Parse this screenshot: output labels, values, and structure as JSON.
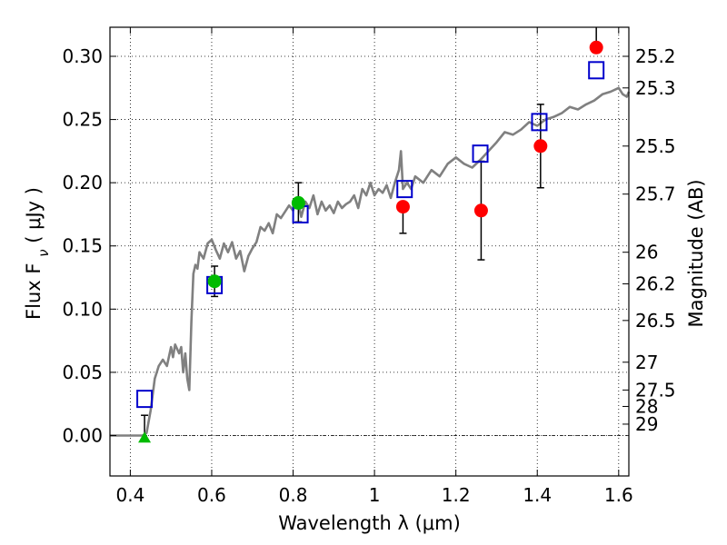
{
  "chart_data": {
    "type": "scatter",
    "xlabel": "Wavelength  λ (μm)",
    "ylabel": "Flux  F",
    "ylabel_sub": "ν",
    "ylabel_unit": " (  μJy )",
    "ylabel_right": "Magnitude (AB)",
    "xlim": [
      0.35,
      1.625
    ],
    "ylim": [
      -0.032,
      0.323
    ],
    "x_ticks": [
      0.4,
      0.6,
      0.8,
      1.0,
      1.2,
      1.4,
      1.6
    ],
    "x_tick_labels": [
      "0.4",
      "0.6",
      "0.8",
      "1",
      "1.2",
      "1.4",
      "1.6"
    ],
    "y_ticks": [
      0.0,
      0.05,
      0.1,
      0.15,
      0.2,
      0.25,
      0.3
    ],
    "y_tick_labels": [
      "0.00",
      "0.05",
      "0.10",
      "0.15",
      "0.20",
      "0.25",
      "0.30"
    ],
    "right_ticks": [
      {
        "label": "25.2",
        "flux": 0.3
      },
      {
        "label": "25.3",
        "flux": 0.275
      },
      {
        "label": "25.5",
        "flux": 0.229
      },
      {
        "label": "25.7",
        "flux": 0.191
      },
      {
        "label": "26",
        "flux": 0.145
      },
      {
        "label": "26.2",
        "flux": 0.12
      },
      {
        "label": "26.5",
        "flux": 0.091
      },
      {
        "label": "27",
        "flux": 0.058
      },
      {
        "label": "27.5",
        "flux": 0.036
      },
      {
        "label": "28",
        "flux": 0.023
      },
      {
        "label": "29",
        "flux": 0.009
      }
    ],
    "grid": true,
    "colors": {
      "model": "#808080",
      "model_points": "#0000cc",
      "red_points": "#ff0000",
      "green_points": "#00bb00",
      "errorbar": "#000000"
    },
    "series": [
      {
        "name": "model spectrum",
        "style": "line",
        "x": [
          0.35,
          0.38,
          0.4,
          0.42,
          0.425,
          0.43,
          0.44,
          0.45,
          0.46,
          0.47,
          0.48,
          0.49,
          0.5,
          0.505,
          0.51,
          0.52,
          0.525,
          0.53,
          0.535,
          0.54,
          0.545,
          0.55,
          0.555,
          0.56,
          0.565,
          0.57,
          0.58,
          0.59,
          0.6,
          0.61,
          0.62,
          0.63,
          0.64,
          0.65,
          0.66,
          0.67,
          0.68,
          0.69,
          0.7,
          0.71,
          0.72,
          0.73,
          0.74,
          0.75,
          0.76,
          0.77,
          0.78,
          0.79,
          0.8,
          0.81,
          0.82,
          0.83,
          0.84,
          0.85,
          0.86,
          0.87,
          0.88,
          0.89,
          0.9,
          0.91,
          0.92,
          0.93,
          0.94,
          0.95,
          0.96,
          0.97,
          0.98,
          0.99,
          1.0,
          1.01,
          1.02,
          1.03,
          1.04,
          1.05,
          1.06,
          1.065,
          1.07,
          1.08,
          1.09,
          1.1,
          1.12,
          1.14,
          1.16,
          1.18,
          1.2,
          1.22,
          1.24,
          1.26,
          1.28,
          1.3,
          1.32,
          1.34,
          1.36,
          1.38,
          1.4,
          1.42,
          1.44,
          1.46,
          1.48,
          1.5,
          1.52,
          1.54,
          1.56,
          1.58,
          1.6,
          1.61,
          1.62,
          1.625
        ],
        "y": [
          0.0,
          0.0,
          0.0,
          0.0,
          0.0,
          0.0,
          0.002,
          0.02,
          0.045,
          0.055,
          0.06,
          0.055,
          0.07,
          0.062,
          0.072,
          0.065,
          0.07,
          0.05,
          0.065,
          0.045,
          0.036,
          0.09,
          0.128,
          0.135,
          0.132,
          0.145,
          0.14,
          0.152,
          0.155,
          0.147,
          0.14,
          0.152,
          0.145,
          0.153,
          0.14,
          0.146,
          0.13,
          0.142,
          0.148,
          0.153,
          0.165,
          0.162,
          0.168,
          0.16,
          0.175,
          0.172,
          0.177,
          0.182,
          0.178,
          0.188,
          0.173,
          0.185,
          0.18,
          0.19,
          0.175,
          0.185,
          0.178,
          0.182,
          0.176,
          0.185,
          0.18,
          0.183,
          0.185,
          0.19,
          0.18,
          0.195,
          0.19,
          0.2,
          0.19,
          0.195,
          0.192,
          0.198,
          0.188,
          0.2,
          0.21,
          0.225,
          0.195,
          0.2,
          0.195,
          0.205,
          0.2,
          0.21,
          0.205,
          0.215,
          0.22,
          0.215,
          0.212,
          0.218,
          0.225,
          0.232,
          0.24,
          0.238,
          0.242,
          0.248,
          0.245,
          0.25,
          0.252,
          0.255,
          0.26,
          0.258,
          0.262,
          0.265,
          0.27,
          0.272,
          0.275,
          0.27,
          0.268,
          0.272
        ]
      },
      {
        "name": "model points",
        "style": "open-square",
        "x": [
          0.435,
          0.607,
          0.818,
          1.074,
          1.26,
          1.405,
          1.545
        ],
        "y": [
          0.029,
          0.119,
          0.175,
          0.195,
          0.223,
          0.248,
          0.289
        ]
      },
      {
        "name": "red observed",
        "style": "filled-circle",
        "x": [
          1.07,
          1.262,
          1.408,
          1.545
        ],
        "y": [
          0.181,
          0.178,
          0.229,
          0.307
        ],
        "yerr_low": [
          0.021,
          0.039,
          0.033,
          0.0
        ],
        "yerr_high": [
          0.0,
          0.039,
          0.033,
          0.016
        ]
      },
      {
        "name": "green observed",
        "style": "filled-circle",
        "x": [
          0.607,
          0.813
        ],
        "y": [
          0.122,
          0.184
        ],
        "yerr_low": [
          0.012,
          0.015
        ],
        "yerr_high": [
          0.012,
          0.016
        ]
      },
      {
        "name": "upper limit",
        "style": "triangle",
        "x": [
          0.435
        ],
        "y": [
          -0.002
        ],
        "yerr_low": [
          0.0
        ],
        "yerr_high": [
          0.018
        ]
      }
    ]
  }
}
